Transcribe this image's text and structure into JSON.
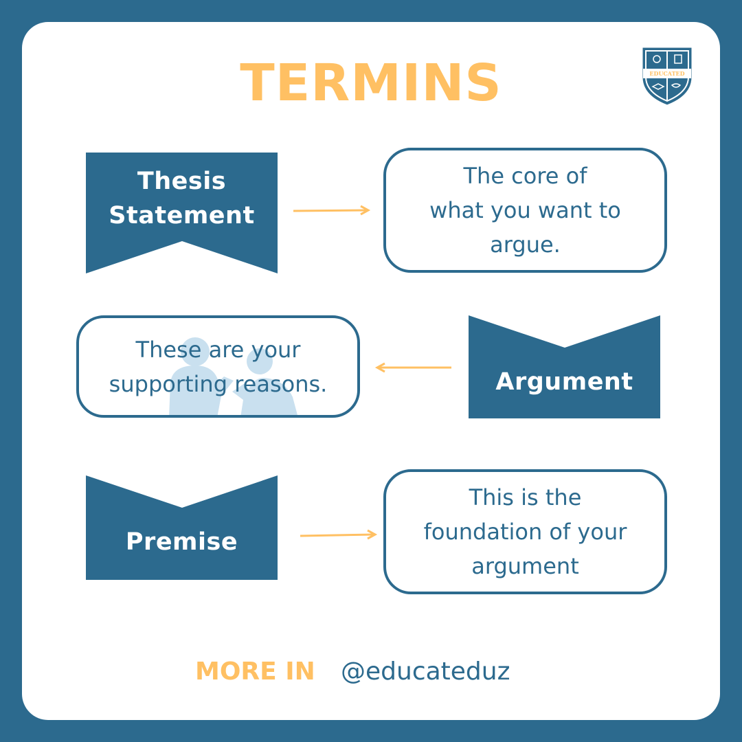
{
  "title": "TERMINS",
  "logo": {
    "text": "EDUCATED",
    "icon": "educated-shield-logo"
  },
  "rows": [
    {
      "term": {
        "line1": "Thesis",
        "line2": "Statement"
      },
      "description": {
        "line1": "The core of",
        "line2": "what you want to",
        "line3": "argue."
      },
      "arrow_direction": "right"
    },
    {
      "term": {
        "line1": "Argument"
      },
      "description": {
        "line1": "These are your",
        "line2": "supporting reasons."
      },
      "arrow_direction": "left"
    },
    {
      "term": {
        "line1": "Premise"
      },
      "description": {
        "line1": "This is the",
        "line2": "foundation of your",
        "line3": "argument"
      },
      "arrow_direction": "right"
    }
  ],
  "footer": {
    "more_label": "MORE IN",
    "handle": "@educateduz"
  },
  "colors": {
    "background": "#2c6a8e",
    "card": "#ffffff",
    "accent": "#ffc063",
    "text_primary": "#2c6a8e",
    "silhouette": "#c9e0ef"
  }
}
